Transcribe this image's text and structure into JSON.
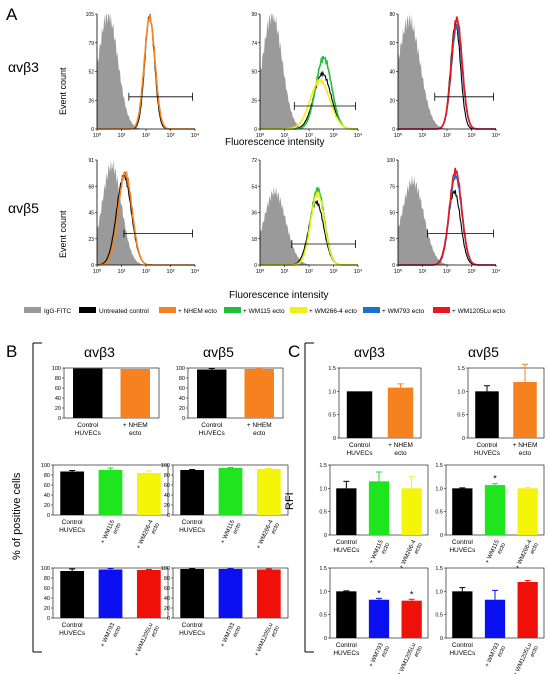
{
  "panel_letters": {
    "a": "A",
    "b": "B",
    "c": "C"
  },
  "section_a": {
    "row_labels": [
      "αvβ3",
      "αvβ5"
    ],
    "ylabel": "Event count",
    "xlabel": "Fluorescence intensity",
    "legend": [
      {
        "label": "IgG-FITC",
        "color": "#9a9a9a"
      },
      {
        "label": "Untreated control",
        "color": "#000000"
      },
      {
        "label": "+ NHEM ecto",
        "color": "#f5821f"
      },
      {
        "label": "+ WM115 ecto",
        "color": "#1fbf3a"
      },
      {
        "label": "+ WM266-4 ecto",
        "color": "#f2ee1a"
      },
      {
        "label": "+ WM793 ecto",
        "color": "#1f6fd1"
      },
      {
        "label": "+ WM1205Lu ecto",
        "color": "#e8181e"
      }
    ]
  },
  "section_b": {
    "ylabel": "% of positive cells",
    "titles": [
      "αvβ3",
      "αvβ5"
    ]
  },
  "section_c": {
    "ylabel": "RFI",
    "titles": [
      "αvβ3",
      "αvβ5"
    ]
  },
  "colors": {
    "control": "#000000",
    "NHEM": "#f5821f",
    "WM115": "#1fe51f",
    "WM266-4": "#f5f50a",
    "WM793": "#0a10f0",
    "WM1205Lu": "#f0100a",
    "igg": "#9a9a9a"
  },
  "chart_data": [
    {
      "type": "area",
      "panel": "A",
      "row": "αvβ3",
      "col": 1,
      "xscale": "log",
      "xlim": [
        1,
        10000
      ],
      "y_ticks": [
        "0",
        "26",
        "52",
        "79",
        "105"
      ],
      "x_ticks": [
        "10⁰",
        "10¹",
        "10²",
        "10³",
        "10⁴"
      ],
      "series": [
        "IgG-FITC",
        "Untreated control",
        "+ NHEM ecto"
      ]
    },
    {
      "type": "area",
      "panel": "A",
      "row": "αvβ3",
      "col": 2,
      "xscale": "log",
      "xlim": [
        1,
        10000
      ],
      "y_ticks": [
        "0",
        "25",
        "50",
        "74",
        "99"
      ],
      "x_ticks": [
        "10⁰",
        "10¹",
        "10²",
        "10³",
        "10⁴"
      ],
      "series": [
        "IgG-FITC",
        "Untreated control",
        "+ WM115 ecto",
        "+ WM266-4 ecto"
      ]
    },
    {
      "type": "area",
      "panel": "A",
      "row": "αvβ3",
      "col": 3,
      "xscale": "log",
      "xlim": [
        1,
        10000
      ],
      "y_ticks": [
        "0",
        "20",
        "40",
        "60",
        "80"
      ],
      "x_ticks": [
        "10⁰",
        "10¹",
        "10²",
        "10³",
        "10⁴"
      ],
      "series": [
        "IgG-FITC",
        "Untreated control",
        "+ WM793 ecto",
        "+ WM1205Lu ecto"
      ]
    },
    {
      "type": "area",
      "panel": "A",
      "row": "αvβ5",
      "col": 1,
      "xscale": "log",
      "xlim": [
        1,
        10000
      ],
      "y_ticks": [
        "0",
        "23",
        "45",
        "68",
        "91"
      ],
      "x_ticks": [
        "10⁰",
        "10¹",
        "10²",
        "10³",
        "10⁴"
      ],
      "series": [
        "IgG-FITC",
        "Untreated control",
        "+ NHEM ecto"
      ]
    },
    {
      "type": "area",
      "panel": "A",
      "row": "αvβ5",
      "col": 2,
      "xscale": "log",
      "xlim": [
        1,
        10000
      ],
      "y_ticks": [
        "0",
        "18",
        "36",
        "54",
        "72"
      ],
      "x_ticks": [
        "10⁰",
        "10¹",
        "10²",
        "10³",
        "10⁴"
      ],
      "series": [
        "IgG-FITC",
        "Untreated control",
        "+ WM115 ecto",
        "+ WM266-4 ecto"
      ]
    },
    {
      "type": "area",
      "panel": "A",
      "row": "αvβ5",
      "col": 3,
      "xscale": "log",
      "xlim": [
        1,
        10000
      ],
      "y_ticks": [
        "0",
        "25",
        "50",
        "75",
        "100"
      ],
      "x_ticks": [
        "10⁰",
        "10¹",
        "10²",
        "10³",
        "10⁴"
      ],
      "series": [
        "IgG-FITC",
        "Untreated control",
        "+ WM793 ecto",
        "+ WM1205Lu ecto"
      ]
    },
    {
      "type": "bar",
      "panel": "B",
      "title": "αvβ3",
      "ylim": [
        0,
        100
      ],
      "y_ticks": [
        "0",
        "20",
        "40",
        "60",
        "80",
        "100"
      ],
      "categories": [
        "Control HUVECs",
        "+ NHEM ecto"
      ],
      "values": [
        99,
        98
      ],
      "errors": [
        0,
        0
      ],
      "colors": [
        "#000000",
        "#f5821f"
      ],
      "stars": [
        false,
        false
      ]
    },
    {
      "type": "bar",
      "panel": "B",
      "title": "αvβ5",
      "ylim": [
        0,
        100
      ],
      "y_ticks": [
        "0",
        "20",
        "40",
        "60",
        "80",
        "100"
      ],
      "categories": [
        "Control HUVECs",
        "+ NHEM ecto"
      ],
      "values": [
        97,
        98
      ],
      "errors": [
        2,
        1
      ],
      "colors": [
        "#000000",
        "#f5821f"
      ],
      "stars": [
        false,
        false
      ]
    },
    {
      "type": "bar",
      "panel": "B",
      "ylim": [
        0,
        100
      ],
      "y_ticks": [
        "0",
        "20",
        "40",
        "60",
        "80",
        "100"
      ],
      "categories": [
        "Control HUVECs",
        "+ WM115 ecto",
        "+ WM266-4 ecto"
      ],
      "values": [
        87,
        90,
        84
      ],
      "errors": [
        2,
        4,
        4
      ],
      "colors": [
        "#000000",
        "#1fe51f",
        "#f5f50a"
      ],
      "stars": [
        false,
        false,
        false
      ]
    },
    {
      "type": "bar",
      "panel": "B",
      "ylim": [
        0,
        100
      ],
      "y_ticks": [
        "0",
        "20",
        "40",
        "60",
        "80",
        "100"
      ],
      "categories": [
        "Control HUVECs",
        "+ WM115 ecto",
        "+ WM266-4 ecto"
      ],
      "values": [
        90,
        94,
        92
      ],
      "errors": [
        1,
        1,
        1
      ],
      "colors": [
        "#000000",
        "#1fe51f",
        "#f5f50a"
      ],
      "stars": [
        false,
        false,
        false
      ]
    },
    {
      "type": "bar",
      "panel": "B",
      "ylim": [
        0,
        100
      ],
      "y_ticks": [
        "0",
        "20",
        "40",
        "60",
        "80",
        "100"
      ],
      "categories": [
        "Control HUVECs",
        "+ WM793 ecto",
        "+ WM1205Lu ecto"
      ],
      "values": [
        94,
        97,
        96
      ],
      "errors": [
        4,
        2,
        1
      ],
      "colors": [
        "#000000",
        "#0a10f0",
        "#f0100a"
      ],
      "stars": [
        false,
        false,
        false
      ]
    },
    {
      "type": "bar",
      "panel": "B",
      "ylim": [
        0,
        100
      ],
      "y_ticks": [
        "0",
        "20",
        "40",
        "60",
        "80",
        "100"
      ],
      "categories": [
        "Control HUVECs",
        "+ WM793 ecto",
        "+ WM1205Lu ecto"
      ],
      "values": [
        98,
        98,
        97
      ],
      "errors": [
        1,
        1,
        1
      ],
      "colors": [
        "#000000",
        "#0a10f0",
        "#f0100a"
      ],
      "stars": [
        false,
        false,
        false
      ]
    },
    {
      "type": "bar",
      "panel": "C",
      "title": "αvβ3",
      "ylim": [
        0,
        1.5
      ],
      "y_ticks": [
        "0",
        "0.5",
        "1.0",
        "1.5"
      ],
      "categories": [
        "Control HUVECs",
        "+ NHEM ecto"
      ],
      "values": [
        1.0,
        1.08
      ],
      "errors": [
        0,
        0.08
      ],
      "colors": [
        "#000000",
        "#f5821f"
      ],
      "stars": [
        false,
        false
      ]
    },
    {
      "type": "bar",
      "panel": "C",
      "title": "αvβ5",
      "ylim": [
        0,
        1.5
      ],
      "y_ticks": [
        "0",
        "0.5",
        "1.0",
        "1.5"
      ],
      "categories": [
        "Control HUVECs",
        "+ NHEM ecto"
      ],
      "values": [
        1.0,
        1.2
      ],
      "errors": [
        0.12,
        0.38
      ],
      "colors": [
        "#000000",
        "#f5821f"
      ],
      "stars": [
        false,
        false
      ]
    },
    {
      "type": "bar",
      "panel": "C",
      "ylim": [
        0,
        1.5
      ],
      "y_ticks": [
        "0",
        "0.5",
        "1.0",
        "1.5"
      ],
      "categories": [
        "Control HUVECs",
        "+ WM115 ecto",
        "+ WM266-4 ecto"
      ],
      "values": [
        1.0,
        1.15,
        1.0
      ],
      "errors": [
        0.15,
        0.2,
        0.25
      ],
      "colors": [
        "#000000",
        "#1fe51f",
        "#f5f50a"
      ],
      "stars": [
        false,
        false,
        false
      ]
    },
    {
      "type": "bar",
      "panel": "C",
      "ylim": [
        0,
        1.5
      ],
      "y_ticks": [
        "0",
        "0.5",
        "1.0",
        "1.5"
      ],
      "categories": [
        "Control HUVECs",
        "+ WM115 ecto",
        "+ WM266-4 ecto"
      ],
      "values": [
        1.0,
        1.07,
        1.0
      ],
      "errors": [
        0.01,
        0.03,
        0.02
      ],
      "colors": [
        "#000000",
        "#1fe51f",
        "#f5f50a"
      ],
      "stars": [
        false,
        true,
        false
      ]
    },
    {
      "type": "bar",
      "panel": "C",
      "ylim": [
        0,
        1.5
      ],
      "y_ticks": [
        "0",
        "0.5",
        "1.0",
        "1.5"
      ],
      "categories": [
        "Control HUVECs",
        "+ WM793 ecto",
        "+ WM1205Lu ecto"
      ],
      "values": [
        1.0,
        0.82,
        0.8
      ],
      "errors": [
        0.01,
        0.03,
        0.03
      ],
      "colors": [
        "#000000",
        "#0a10f0",
        "#f0100a"
      ],
      "stars": [
        false,
        true,
        true
      ]
    },
    {
      "type": "bar",
      "panel": "C",
      "ylim": [
        0,
        1.5
      ],
      "y_ticks": [
        "0",
        "0.5",
        "1.0",
        "1.5"
      ],
      "categories": [
        "Control HUVECs",
        "+ WM793 ecto",
        "+ WM1205Lu ecto"
      ],
      "values": [
        1.0,
        0.82,
        1.2
      ],
      "errors": [
        0.08,
        0.2,
        0.03
      ],
      "colors": [
        "#000000",
        "#0a10f0",
        "#f0100a"
      ],
      "stars": [
        false,
        false,
        false
      ]
    }
  ]
}
